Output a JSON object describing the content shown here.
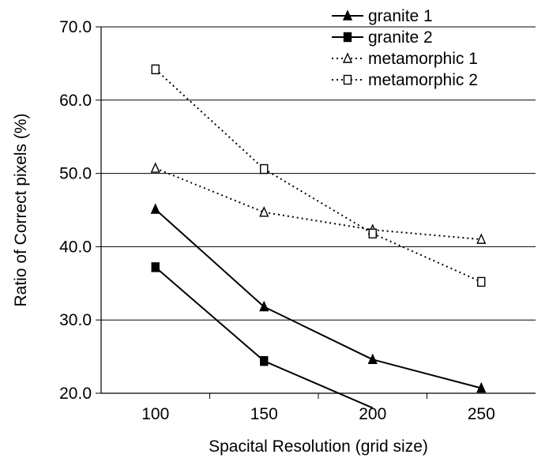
{
  "chart_data": {
    "type": "line",
    "xlabel": "Spacital Resolution (grid size)",
    "ylabel": "Ratio of Correct pixels (%)",
    "x": [
      100,
      150,
      200,
      250
    ],
    "xticks": [
      "100",
      "150",
      "200",
      "250"
    ],
    "yticks": [
      "20.0",
      "30.0",
      "40.0",
      "50.0",
      "60.0",
      "70.0"
    ],
    "ylim": [
      20,
      70
    ],
    "grid": "horizontal",
    "legend_position": "top-right",
    "series": [
      {
        "name": "granite 1",
        "values": [
          45.1,
          31.8,
          24.6,
          20.7
        ],
        "style": "solid",
        "marker": "filled-triangle"
      },
      {
        "name": "granite 2",
        "values": [
          37.2,
          24.4,
          18.0,
          null
        ],
        "style": "solid",
        "marker": "filled-square"
      },
      {
        "name": "metamorphic 1",
        "values": [
          50.7,
          44.7,
          42.3,
          41.0
        ],
        "style": "dotted",
        "marker": "open-triangle"
      },
      {
        "name": "metamorphic 2",
        "values": [
          64.2,
          50.6,
          41.8,
          35.2
        ],
        "style": "dotted",
        "marker": "open-square"
      }
    ]
  },
  "colors": {
    "line": "#000000",
    "grid": "#000000",
    "background": "#ffffff"
  }
}
